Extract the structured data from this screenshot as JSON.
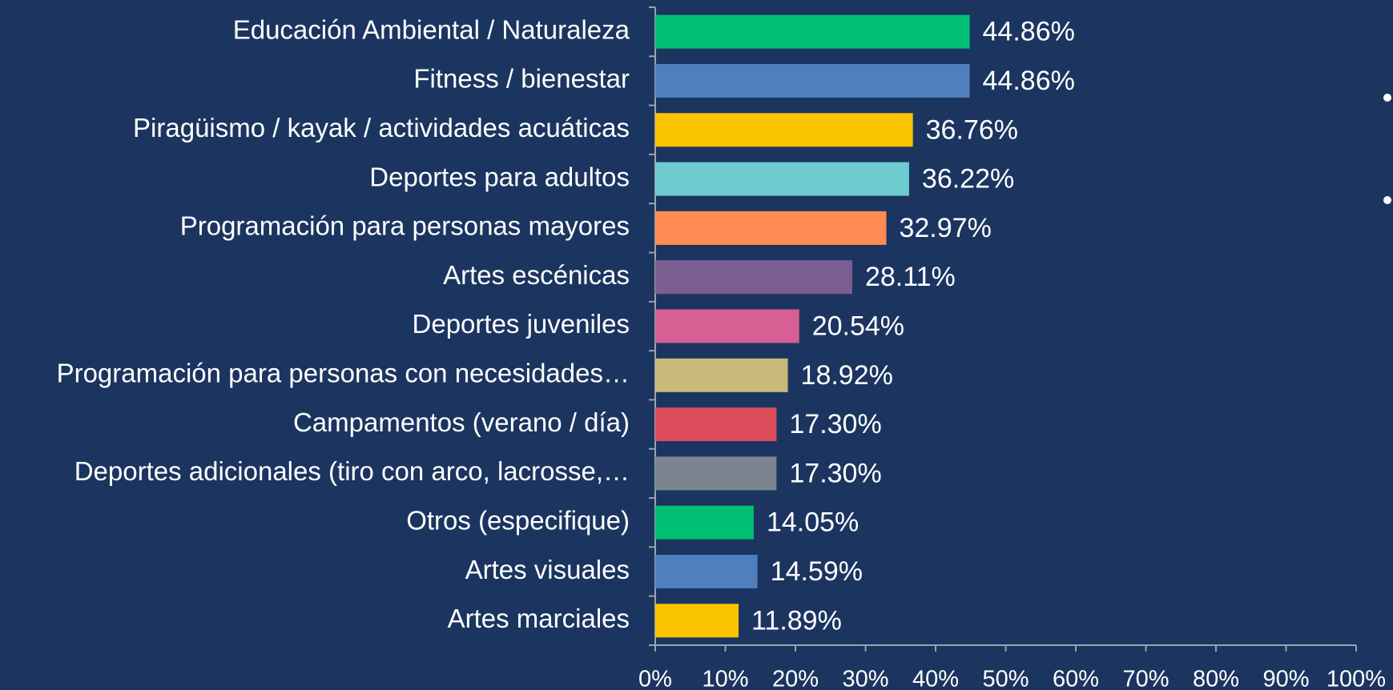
{
  "chart_data": {
    "type": "barh",
    "categories": [
      "Educación Ambiental / Naturaleza",
      "Fitness / bienestar",
      "Piragüismo / kayak / actividades acuáticas",
      "Deportes para adultos",
      "Programación para personas mayores",
      "Artes escénicas",
      "Deportes juveniles",
      "Programación para personas con necesidades…",
      "Campamentos (verano / día)",
      "Deportes adicionales (tiro con arco, lacrosse,…",
      "Otros (especifique)",
      "Artes visuales",
      "Artes marciales"
    ],
    "values": [
      44.86,
      44.86,
      36.76,
      36.22,
      32.97,
      28.11,
      20.54,
      18.92,
      17.3,
      17.3,
      14.05,
      14.59,
      11.89
    ],
    "value_labels": [
      "44.86%",
      "44.86%",
      "36.76%",
      "36.22%",
      "32.97%",
      "28.11%",
      "20.54%",
      "18.92%",
      "17.30%",
      "17.30%",
      "14.05%",
      "14.59%",
      "11.89%"
    ],
    "colors": [
      "#00c073",
      "#4f7fbd",
      "#f9c300",
      "#6ecbcf",
      "#ff8c52",
      "#7b5e92",
      "#d85f93",
      "#c9b97a",
      "#dc4c5c",
      "#7a8590",
      "#00c073",
      "#4f7fbd",
      "#f9c300"
    ],
    "xlim": [
      0,
      100
    ],
    "xticks": [
      {
        "value": 0,
        "label": "0%"
      },
      {
        "value": 10,
        "label": "10%"
      },
      {
        "value": 20,
        "label": "20%"
      },
      {
        "value": 30,
        "label": "30%"
      },
      {
        "value": 40,
        "label": "40%"
      },
      {
        "value": 50,
        "label": "50%"
      },
      {
        "value": 60,
        "label": "60%"
      },
      {
        "value": 70,
        "label": "70%"
      },
      {
        "value": 80,
        "label": "80%"
      },
      {
        "value": 90,
        "label": "90%"
      },
      {
        "value": 100,
        "label": "100%"
      }
    ]
  }
}
